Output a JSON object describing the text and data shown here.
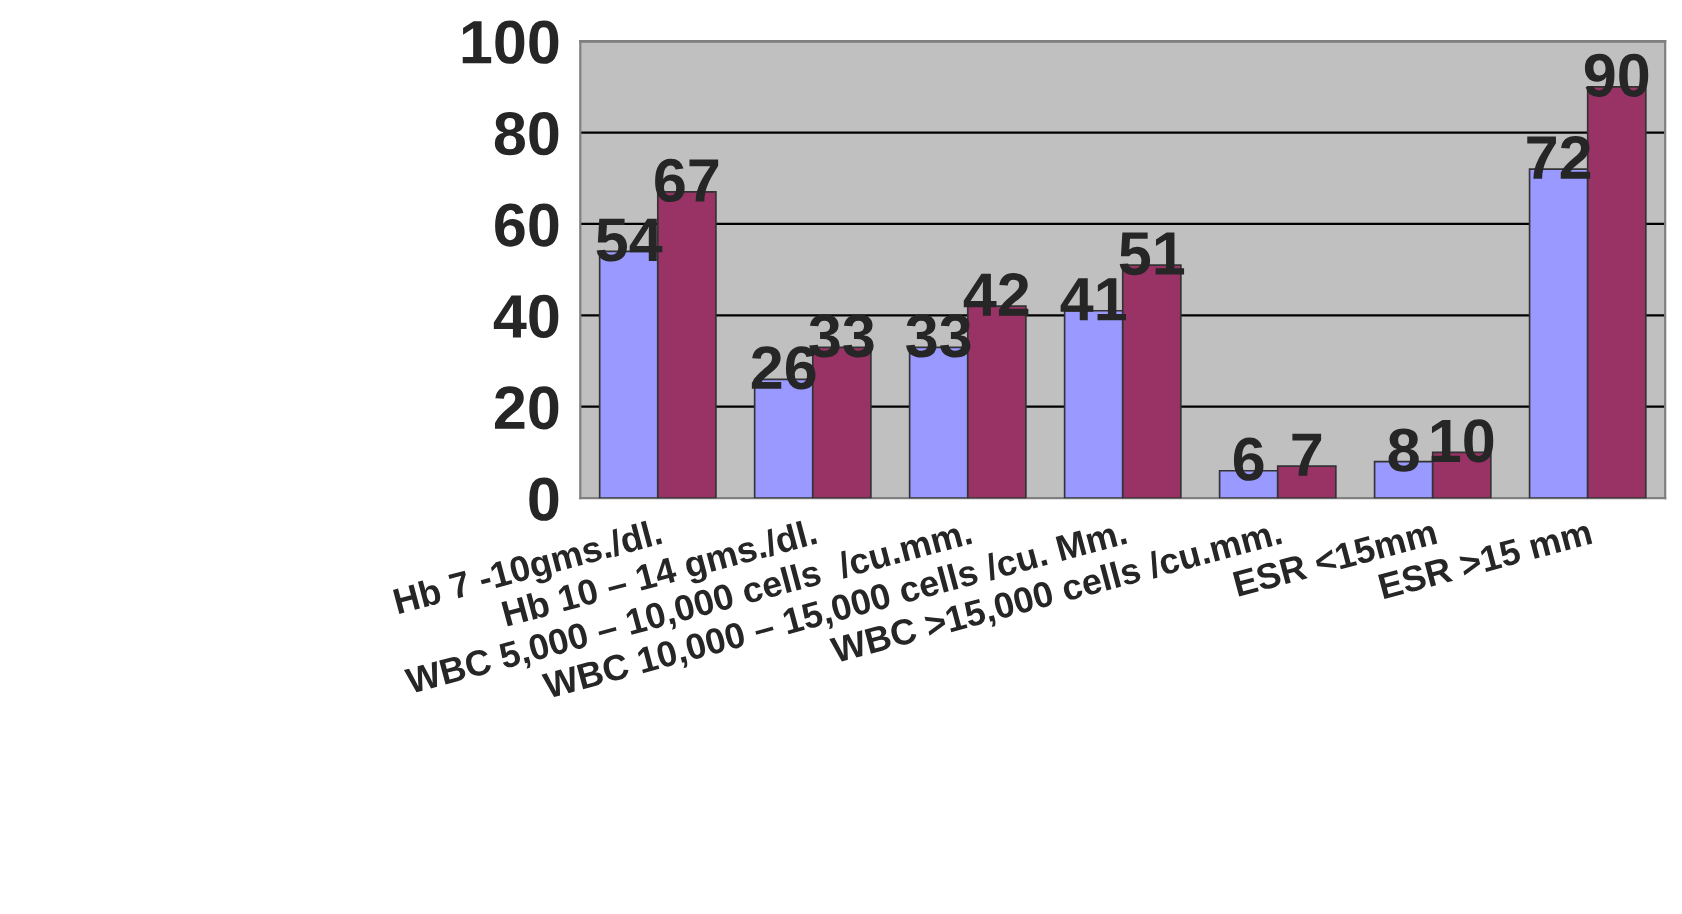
{
  "chart_data": {
    "type": "bar",
    "categories": [
      "Hb 7 -10gms./dl.",
      "Hb 10 – 14 gms./dl.",
      "WBC 5,000 – 10,000 cells  /cu.mm.",
      "WBC 10,000 – 15,000 cells /cu. Mm.",
      "WBC >15,000 cells /cu.mm.",
      "ESR <15mm",
      "ESR >15 mm"
    ],
    "series": [
      {
        "color": "#9999ff",
        "values": [
          54,
          26,
          33,
          41,
          6,
          8,
          72
        ]
      },
      {
        "color": "#993366",
        "values": [
          67,
          33,
          42,
          51,
          7,
          10,
          90
        ]
      }
    ],
    "ylim": [
      0,
      100
    ],
    "yticks": [
      0,
      20,
      40,
      60,
      80,
      100
    ],
    "grid": "y",
    "legend": false,
    "data_labels": true
  }
}
